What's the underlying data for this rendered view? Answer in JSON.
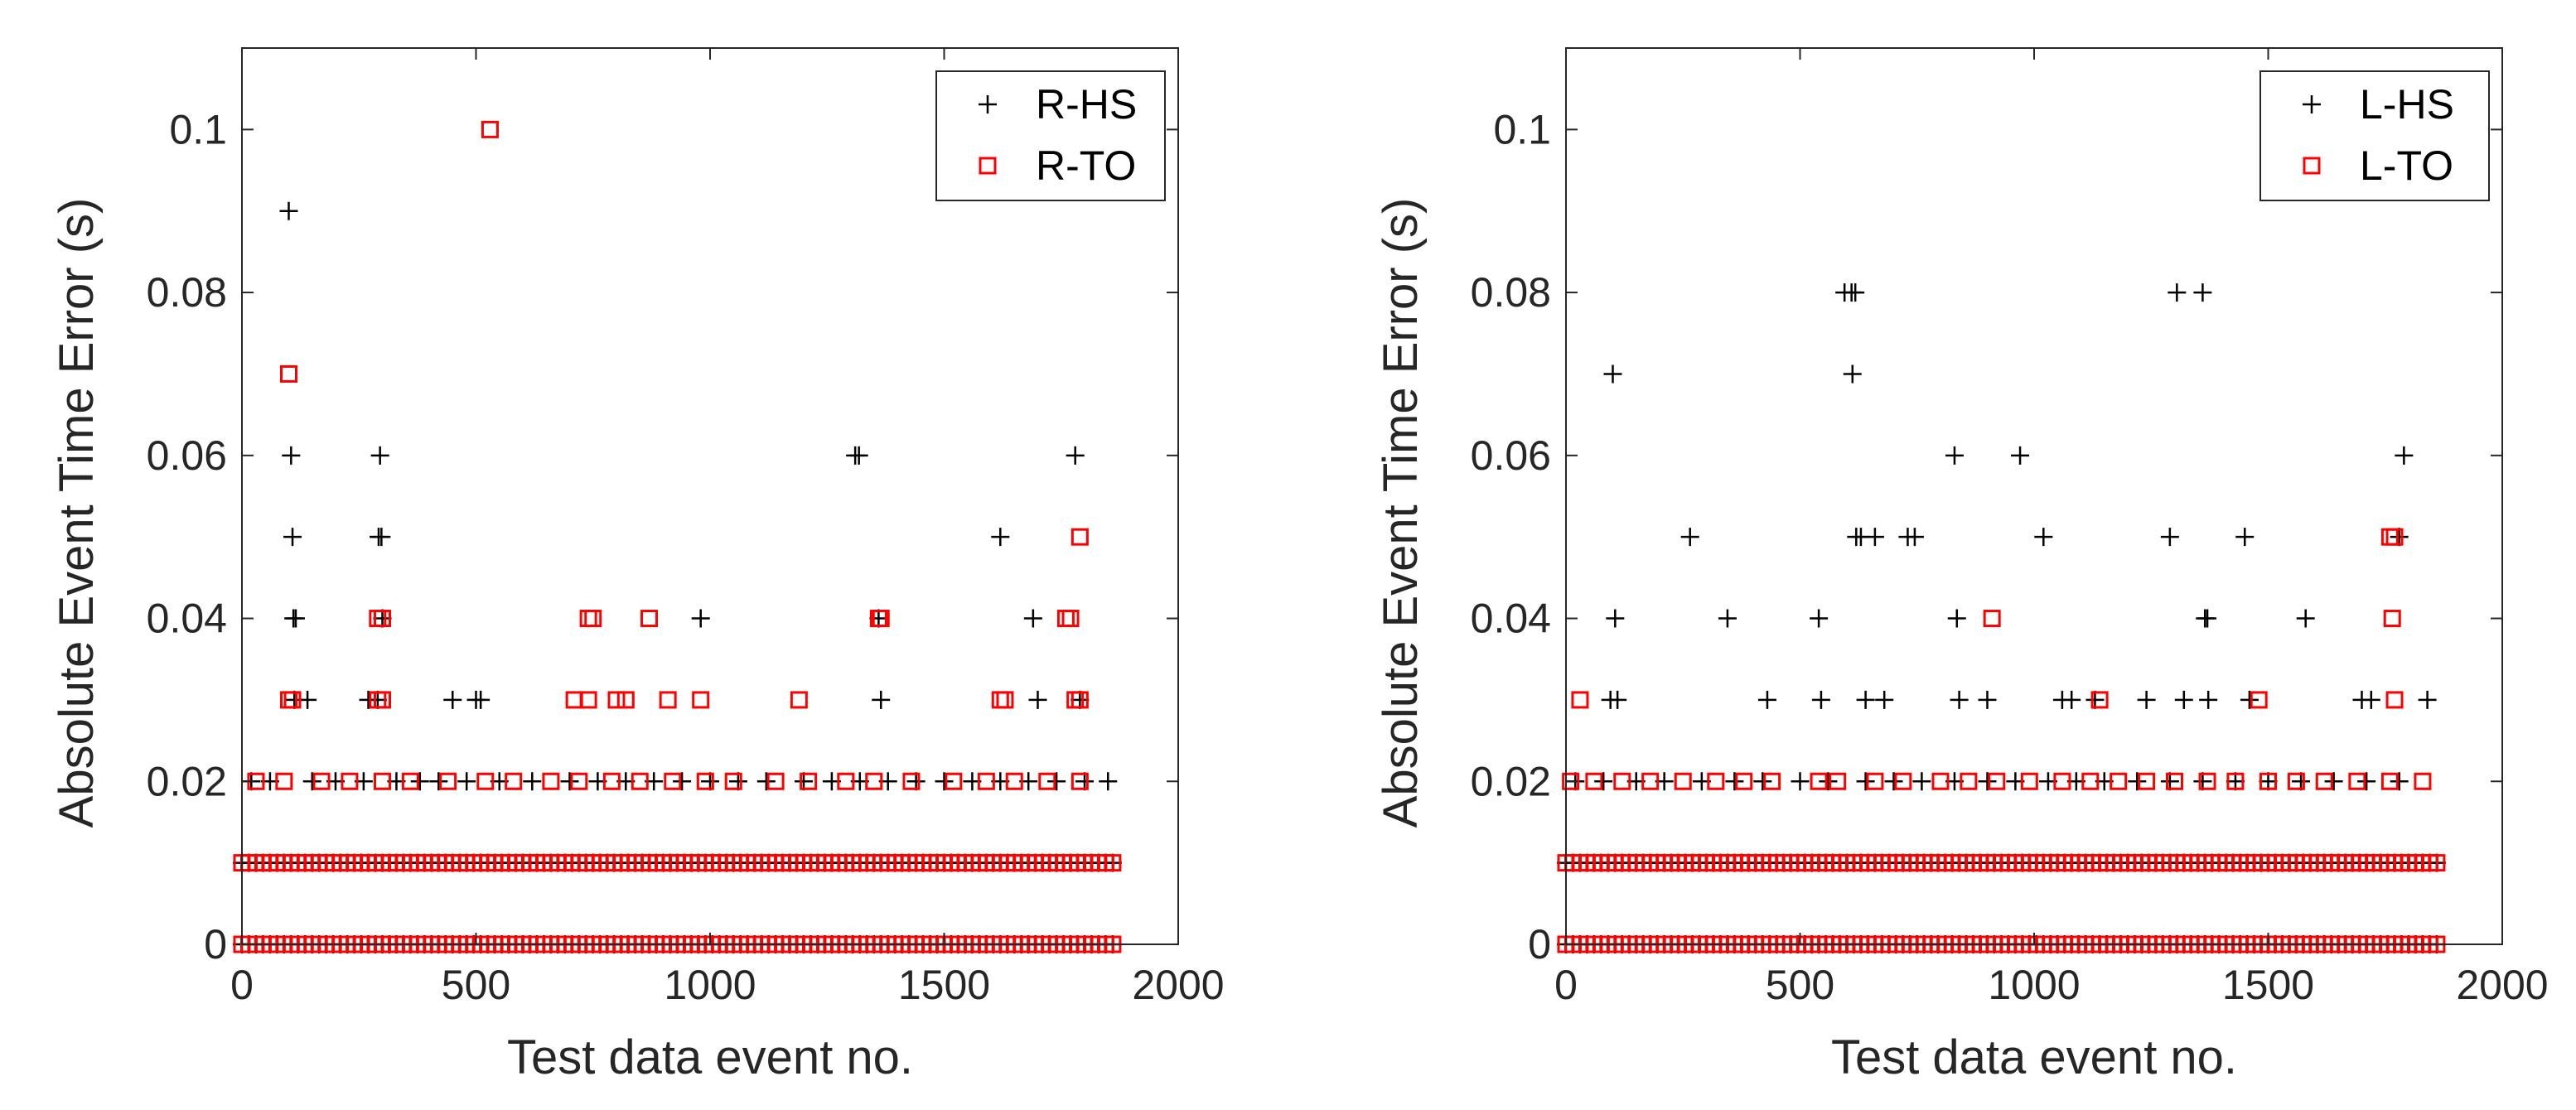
{
  "chart_data": [
    {
      "type": "scatter",
      "xlabel": "Test data event no.",
      "ylabel": "Absolute Event Time Error (s)",
      "xlim": [
        0,
        2000
      ],
      "ylim": [
        0,
        0.11
      ],
      "xticks": [
        "0",
        "500",
        "1000",
        "1500",
        "2000"
      ],
      "yticks": [
        "0",
        "0.02",
        "0.04",
        "0.06",
        "0.08",
        "0.1"
      ],
      "legend_position": "top-right",
      "series": [
        {
          "name": "R-HS",
          "marker": "plus",
          "color": "#000000",
          "points": [
            [
              100,
              0.09
            ],
            [
              105,
              0.06
            ],
            [
              108,
              0.05
            ],
            [
              110,
              0.04
            ],
            [
              115,
              0.04
            ],
            [
              112,
              0.03
            ],
            [
              140,
              0.03
            ],
            [
              295,
              0.06
            ],
            [
              292,
              0.05
            ],
            [
              298,
              0.05
            ],
            [
              300,
              0.04
            ],
            [
              290,
              0.03
            ],
            [
              270,
              0.03
            ],
            [
              450,
              0.03
            ],
            [
              500,
              0.03
            ],
            [
              510,
              0.03
            ],
            [
              980,
              0.04
            ],
            [
              1310,
              0.06
            ],
            [
              1318,
              0.06
            ],
            [
              1360,
              0.04
            ],
            [
              1365,
              0.03
            ],
            [
              1620,
              0.05
            ],
            [
              1690,
              0.04
            ],
            [
              1700,
              0.03
            ],
            [
              1780,
              0.06
            ],
            [
              1790,
              0.03
            ],
            [
              20,
              0.02
            ],
            [
              60,
              0.02
            ],
            [
              150,
              0.02
            ],
            [
              200,
              0.02
            ],
            [
              260,
              0.02
            ],
            [
              330,
              0.02
            ],
            [
              380,
              0.02
            ],
            [
              420,
              0.02
            ],
            [
              480,
              0.02
            ],
            [
              550,
              0.02
            ],
            [
              620,
              0.02
            ],
            [
              700,
              0.02
            ],
            [
              760,
              0.02
            ],
            [
              820,
              0.02
            ],
            [
              880,
              0.02
            ],
            [
              940,
              0.02
            ],
            [
              1000,
              0.02
            ],
            [
              1060,
              0.02
            ],
            [
              1120,
              0.02
            ],
            [
              1200,
              0.02
            ],
            [
              1260,
              0.02
            ],
            [
              1320,
              0.02
            ],
            [
              1380,
              0.02
            ],
            [
              1440,
              0.02
            ],
            [
              1500,
              0.02
            ],
            [
              1560,
              0.02
            ],
            [
              1620,
              0.02
            ],
            [
              1680,
              0.02
            ],
            [
              1740,
              0.02
            ],
            [
              1800,
              0.02
            ],
            [
              1850,
              0.02
            ]
          ],
          "bands": [
            {
              "value": 0.01,
              "x_range": [
                0,
                1860
              ],
              "step": 15
            },
            {
              "value": 0.0,
              "x_range": [
                0,
                1860
              ],
              "step": 15
            }
          ]
        },
        {
          "name": "R-TO",
          "marker": "square",
          "color": "#ff0000",
          "points": [
            [
              530,
              0.1
            ],
            [
              100,
              0.07
            ],
            [
              1790,
              0.05
            ],
            [
              290,
              0.04
            ],
            [
              300,
              0.04
            ],
            [
              740,
              0.04
            ],
            [
              750,
              0.04
            ],
            [
              870,
              0.04
            ],
            [
              1360,
              0.04
            ],
            [
              1365,
              0.04
            ],
            [
              1760,
              0.04
            ],
            [
              1770,
              0.04
            ],
            [
              100,
              0.03
            ],
            [
              108,
              0.03
            ],
            [
              290,
              0.03
            ],
            [
              300,
              0.03
            ],
            [
              710,
              0.03
            ],
            [
              740,
              0.03
            ],
            [
              800,
              0.03
            ],
            [
              820,
              0.03
            ],
            [
              910,
              0.03
            ],
            [
              980,
              0.03
            ],
            [
              1190,
              0.03
            ],
            [
              1620,
              0.03
            ],
            [
              1630,
              0.03
            ],
            [
              1780,
              0.03
            ],
            [
              1790,
              0.03
            ],
            [
              30,
              0.02
            ],
            [
              90,
              0.02
            ],
            [
              170,
              0.02
            ],
            [
              230,
              0.02
            ],
            [
              300,
              0.02
            ],
            [
              360,
              0.02
            ],
            [
              440,
              0.02
            ],
            [
              520,
              0.02
            ],
            [
              580,
              0.02
            ],
            [
              660,
              0.02
            ],
            [
              720,
              0.02
            ],
            [
              790,
              0.02
            ],
            [
              850,
              0.02
            ],
            [
              920,
              0.02
            ],
            [
              990,
              0.02
            ],
            [
              1050,
              0.02
            ],
            [
              1140,
              0.02
            ],
            [
              1210,
              0.02
            ],
            [
              1290,
              0.02
            ],
            [
              1350,
              0.02
            ],
            [
              1430,
              0.02
            ],
            [
              1520,
              0.02
            ],
            [
              1590,
              0.02
            ],
            [
              1650,
              0.02
            ],
            [
              1720,
              0.02
            ],
            [
              1790,
              0.02
            ]
          ],
          "bands": [
            {
              "value": 0.01,
              "x_range": [
                0,
                1860
              ],
              "step": 15
            },
            {
              "value": 0.0,
              "x_range": [
                0,
                1860
              ],
              "step": 15
            }
          ]
        }
      ]
    },
    {
      "type": "scatter",
      "xlabel": "Test data event no.",
      "ylabel": "Absolute Event Time Error (s)",
      "xlim": [
        0,
        2000
      ],
      "ylim": [
        0,
        0.11
      ],
      "xticks": [
        "0",
        "500",
        "1000",
        "1500",
        "2000"
      ],
      "yticks": [
        "0",
        "0.02",
        "0.04",
        "0.06",
        "0.08",
        "0.1"
      ],
      "legend_position": "top-right",
      "series": [
        {
          "name": "L-HS",
          "marker": "plus",
          "color": "#000000",
          "points": [
            [
              100,
              0.07
            ],
            [
              105,
              0.04
            ],
            [
              95,
              0.03
            ],
            [
              110,
              0.03
            ],
            [
              265,
              0.05
            ],
            [
              345,
              0.04
            ],
            [
              430,
              0.03
            ],
            [
              540,
              0.04
            ],
            [
              545,
              0.03
            ],
            [
              595,
              0.08
            ],
            [
              610,
              0.08
            ],
            [
              618,
              0.08
            ],
            [
              612,
              0.07
            ],
            [
              620,
              0.05
            ],
            [
              630,
              0.05
            ],
            [
              640,
              0.03
            ],
            [
              660,
              0.05
            ],
            [
              680,
              0.03
            ],
            [
              730,
              0.05
            ],
            [
              745,
              0.05
            ],
            [
              830,
              0.06
            ],
            [
              835,
              0.04
            ],
            [
              840,
              0.03
            ],
            [
              900,
              0.03
            ],
            [
              970,
              0.06
            ],
            [
              1020,
              0.05
            ],
            [
              1060,
              0.03
            ],
            [
              1080,
              0.03
            ],
            [
              1130,
              0.03
            ],
            [
              1240,
              0.03
            ],
            [
              1290,
              0.05
            ],
            [
              1305,
              0.08
            ],
            [
              1320,
              0.03
            ],
            [
              1360,
              0.08
            ],
            [
              1365,
              0.04
            ],
            [
              1370,
              0.04
            ],
            [
              1372,
              0.03
            ],
            [
              1450,
              0.05
            ],
            [
              1460,
              0.03
            ],
            [
              1580,
              0.04
            ],
            [
              1700,
              0.03
            ],
            [
              1720,
              0.03
            ],
            [
              1780,
              0.05
            ],
            [
              1790,
              0.06
            ],
            [
              1840,
              0.03
            ],
            [
              20,
              0.02
            ],
            [
              80,
              0.02
            ],
            [
              150,
              0.02
            ],
            [
              210,
              0.02
            ],
            [
              290,
              0.02
            ],
            [
              360,
              0.02
            ],
            [
              420,
              0.02
            ],
            [
              500,
              0.02
            ],
            [
              560,
              0.02
            ],
            [
              640,
              0.02
            ],
            [
              700,
              0.02
            ],
            [
              760,
              0.02
            ],
            [
              830,
              0.02
            ],
            [
              900,
              0.02
            ],
            [
              960,
              0.02
            ],
            [
              1030,
              0.02
            ],
            [
              1090,
              0.02
            ],
            [
              1150,
              0.02
            ],
            [
              1220,
              0.02
            ],
            [
              1290,
              0.02
            ],
            [
              1360,
              0.02
            ],
            [
              1430,
              0.02
            ],
            [
              1500,
              0.02
            ],
            [
              1570,
              0.02
            ],
            [
              1640,
              0.02
            ],
            [
              1710,
              0.02
            ],
            [
              1780,
              0.02
            ]
          ],
          "bands": [
            {
              "value": 0.01,
              "x_range": [
                0,
                1870
              ],
              "step": 15
            },
            {
              "value": 0.0,
              "x_range": [
                0,
                1870
              ],
              "step": 15
            }
          ]
        },
        {
          "name": "L-TO",
          "marker": "square",
          "color": "#ff0000",
          "points": [
            [
              1760,
              0.05
            ],
            [
              1770,
              0.05
            ],
            [
              910,
              0.04
            ],
            [
              1765,
              0.04
            ],
            [
              30,
              0.03
            ],
            [
              1140,
              0.03
            ],
            [
              1480,
              0.03
            ],
            [
              1770,
              0.03
            ],
            [
              10,
              0.02
            ],
            [
              60,
              0.02
            ],
            [
              120,
              0.02
            ],
            [
              180,
              0.02
            ],
            [
              250,
              0.02
            ],
            [
              320,
              0.02
            ],
            [
              380,
              0.02
            ],
            [
              440,
              0.02
            ],
            [
              540,
              0.02
            ],
            [
              580,
              0.02
            ],
            [
              660,
              0.02
            ],
            [
              720,
              0.02
            ],
            [
              800,
              0.02
            ],
            [
              860,
              0.02
            ],
            [
              920,
              0.02
            ],
            [
              990,
              0.02
            ],
            [
              1060,
              0.02
            ],
            [
              1120,
              0.02
            ],
            [
              1180,
              0.02
            ],
            [
              1240,
              0.02
            ],
            [
              1300,
              0.02
            ],
            [
              1370,
              0.02
            ],
            [
              1430,
              0.02
            ],
            [
              1500,
              0.02
            ],
            [
              1560,
              0.02
            ],
            [
              1620,
              0.02
            ],
            [
              1690,
              0.02
            ],
            [
              1760,
              0.02
            ],
            [
              1830,
              0.02
            ]
          ],
          "bands": [
            {
              "value": 0.01,
              "x_range": [
                0,
                1870
              ],
              "step": 15
            },
            {
              "value": 0.0,
              "x_range": [
                0,
                1870
              ],
              "step": 15
            }
          ]
        }
      ]
    }
  ]
}
